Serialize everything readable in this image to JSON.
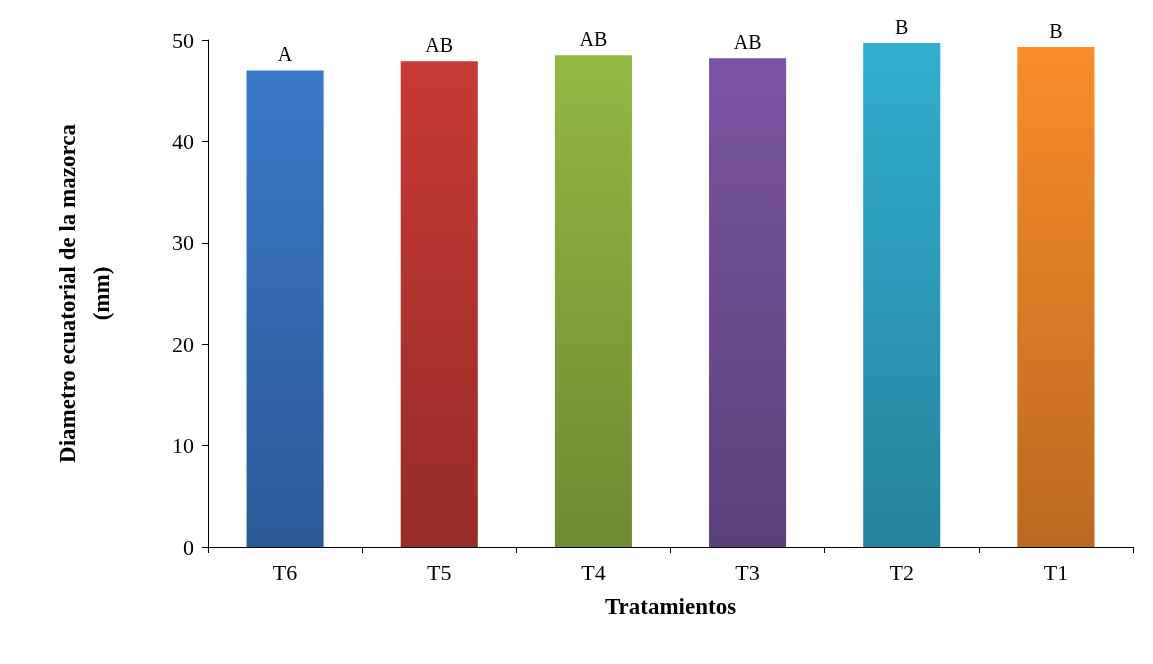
{
  "chart_data": {
    "type": "bar",
    "xlabel": "Tratamientos",
    "ylabel": "Diametro ecuatorial de la mazorca\n(mm)",
    "categories": [
      "T6",
      "T5",
      "T4",
      "T3",
      "T2",
      "T1"
    ],
    "values": [
      47.0,
      47.9,
      48.5,
      48.2,
      49.7,
      49.3
    ],
    "colors": [
      "#3a78c9",
      "#c83a36",
      "#93b842",
      "#7a55a3",
      "#31aed0",
      "#f98c2a"
    ],
    "ylim": [
      0,
      50
    ],
    "yticks": [
      0,
      10,
      20,
      30,
      40,
      50
    ],
    "grid": false,
    "annotations": [
      {
        "text": "A",
        "x": "T6",
        "y": 47.0
      },
      {
        "text": "AB",
        "x": "T5",
        "y": 47.9
      },
      {
        "text": "AB",
        "x": "T4",
        "y": 48.5
      },
      {
        "text": "AB",
        "x": "T3",
        "y": 48.2
      },
      {
        "text": "B",
        "x": "T2",
        "y": 49.7
      },
      {
        "text": "B",
        "x": "T1",
        "y": 49.3
      }
    ]
  }
}
